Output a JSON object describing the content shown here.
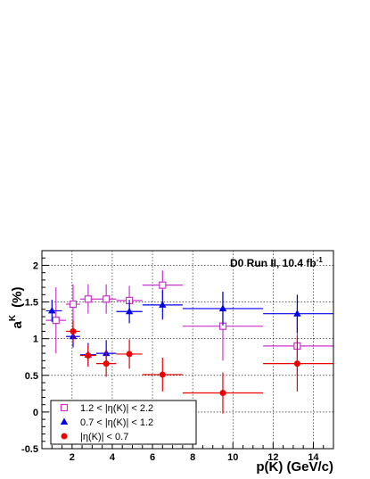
{
  "chart_data": {
    "type": "scatter",
    "title": "",
    "annotation": {
      "text": "D0 Run II, 10.4 fb",
      "superscript": "-1"
    },
    "ylabel": {
      "base": "a",
      "superscript": "K",
      "unit": "(%)"
    },
    "xlabel": "p(K)  (GeV/c)",
    "xlim": [
      0.5,
      15
    ],
    "ylim": [
      -0.5,
      2.2
    ],
    "grid": true,
    "x_ticks": [
      2,
      4,
      6,
      8,
      10,
      12,
      14
    ],
    "y_ticks": [
      -0.5,
      0,
      0.5,
      1,
      1.5,
      2
    ],
    "x_tick_labels": [
      "2",
      "4",
      "6",
      "8",
      "10",
      "12",
      "14"
    ],
    "y_tick_labels": [
      "-0.5",
      "0",
      "0.5",
      "1",
      "1.5",
      "2"
    ],
    "legend_position": "bottom-left",
    "series": [
      {
        "name": "1.2 < |η(K)| < 2.2",
        "color": "#cc33cc",
        "marker": "open-square",
        "points": [
          {
            "x": 1.2,
            "xerr": [
              0.5,
              0.5
            ],
            "y": 1.25,
            "yerr": 0.45
          },
          {
            "x": 2.05,
            "xerr": [
              0.35,
              0.35
            ],
            "y": 1.47,
            "yerr": 0.27
          },
          {
            "x": 2.8,
            "xerr": [
              0.4,
              0.4
            ],
            "y": 1.54,
            "yerr": 0.2
          },
          {
            "x": 3.7,
            "xerr": [
              0.5,
              0.5
            ],
            "y": 1.54,
            "yerr": 0.2
          },
          {
            "x": 4.85,
            "xerr": [
              0.65,
              0.65
            ],
            "y": 1.52,
            "yerr": 0.2
          },
          {
            "x": 6.5,
            "xerr": [
              1.0,
              1.0
            ],
            "y": 1.73,
            "yerr": 0.2
          },
          {
            "x": 9.5,
            "xerr": [
              2.0,
              2.0
            ],
            "y": 1.17,
            "yerr": 0.47
          },
          {
            "x": 13.2,
            "xerr": [
              1.7,
              1.8
            ],
            "y": 0.9,
            "yerr": 0.4
          }
        ]
      },
      {
        "name": "0.7 < |η(K)| < 1.2",
        "color": "#0000ee",
        "marker": "filled-triangle",
        "points": [
          {
            "x": 1.0,
            "xerr": [
              0.3,
              0.5
            ],
            "y": 1.38,
            "yerr": 0.15
          },
          {
            "x": 2.05,
            "xerr": [
              0.35,
              0.35
            ],
            "y": 1.03,
            "yerr": 0.15
          },
          {
            "x": 2.8,
            "xerr": [
              0.4,
              0.4
            ],
            "y": 0.78,
            "yerr": 0.16
          },
          {
            "x": 3.7,
            "xerr": [
              0.5,
              0.5
            ],
            "y": 0.8,
            "yerr": 0.18
          },
          {
            "x": 4.85,
            "xerr": [
              0.65,
              0.65
            ],
            "y": 1.37,
            "yerr": 0.16
          },
          {
            "x": 6.5,
            "xerr": [
              1.0,
              1.0
            ],
            "y": 1.46,
            "yerr": 0.2
          },
          {
            "x": 9.5,
            "xerr": [
              2.0,
              2.0
            ],
            "y": 1.41,
            "yerr": 0.23
          },
          {
            "x": 13.2,
            "xerr": [
              1.7,
              1.8
            ],
            "y": 1.34,
            "yerr": 0.26
          }
        ]
      },
      {
        "name": "|η(K)| < 0.7",
        "color": "#ee0000",
        "marker": "filled-circle",
        "points": [
          {
            "x": 2.05,
            "xerr": [
              0.35,
              0.35
            ],
            "y": 1.1,
            "yerr": 0.15
          },
          {
            "x": 2.8,
            "xerr": [
              0.4,
              0.4
            ],
            "y": 0.77,
            "yerr": 0.15
          },
          {
            "x": 3.7,
            "xerr": [
              0.5,
              0.5
            ],
            "y": 0.66,
            "yerr": 0.18
          },
          {
            "x": 4.85,
            "xerr": [
              0.65,
              0.65
            ],
            "y": 0.79,
            "yerr": 0.2
          },
          {
            "x": 6.5,
            "xerr": [
              1.0,
              1.0
            ],
            "y": 0.51,
            "yerr": 0.23
          },
          {
            "x": 9.5,
            "xerr": [
              2.0,
              2.0
            ],
            "y": 0.26,
            "yerr": 0.28
          },
          {
            "x": 13.2,
            "xerr": [
              1.7,
              1.8
            ],
            "y": 0.66,
            "yerr": 0.38
          }
        ]
      }
    ]
  }
}
